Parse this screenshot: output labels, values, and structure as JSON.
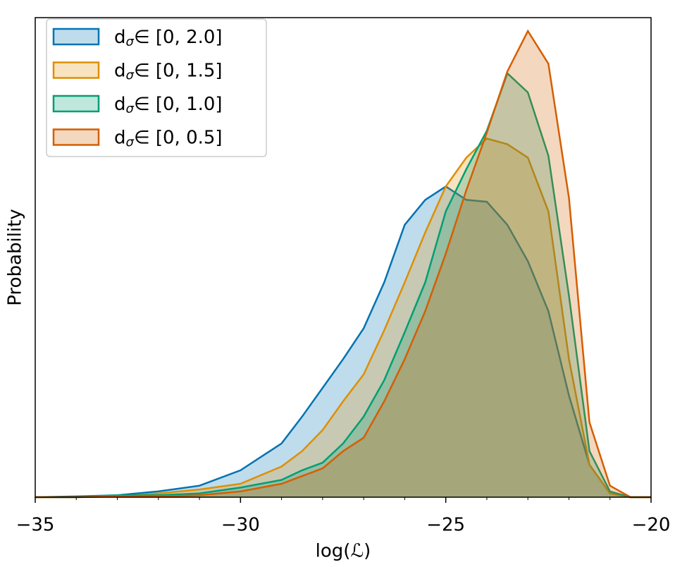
{
  "chart_data": {
    "type": "area",
    "xlabel": "log(ℒ)",
    "ylabel": "Probability",
    "x": [
      -35,
      -34,
      -33,
      -32,
      -31,
      -30,
      -29,
      -28.5,
      -28,
      -27.5,
      -27,
      -26.5,
      -26,
      -25.5,
      -25,
      -24.5,
      -24,
      -23.5,
      -23,
      -22.5,
      -22,
      -21.5,
      -21,
      -20.5,
      -20
    ],
    "series": [
      {
        "name": "dσ∈ [0, 2.0]",
        "color": "#0173b2",
        "values": [
          0,
          0.0004,
          0.001,
          0.003,
          0.006,
          0.014,
          0.028,
          0.042,
          0.057,
          0.072,
          0.088,
          0.112,
          0.142,
          0.155,
          0.162,
          0.155,
          0.154,
          0.142,
          0.123,
          0.097,
          0.053,
          0.017,
          0.002,
          0,
          0
        ]
      },
      {
        "name": "dσ∈ [0, 1.5]",
        "color": "#de8f05",
        "values": [
          0,
          0,
          0.0004,
          0.002,
          0.004,
          0.007,
          0.016,
          0.024,
          0.035,
          0.05,
          0.064,
          0.087,
          0.112,
          0.138,
          0.162,
          0.177,
          0.187,
          0.184,
          0.177,
          0.149,
          0.072,
          0.017,
          0.002,
          0,
          0
        ]
      },
      {
        "name": "dσ∈ [0, 1.0]",
        "color": "#029e73",
        "values": [
          0,
          0,
          0.001,
          0.001,
          0.002,
          0.005,
          0.009,
          0.014,
          0.018,
          0.028,
          0.042,
          0.061,
          0.086,
          0.112,
          0.149,
          0.171,
          0.191,
          0.221,
          0.211,
          0.178,
          0.105,
          0.024,
          0.003,
          0,
          0
        ]
      },
      {
        "name": "dσ∈ [0, 0.5]",
        "color": "#d55e00",
        "values": [
          0,
          0,
          0.0004,
          0.0004,
          0.001,
          0.003,
          0.007,
          0.011,
          0.015,
          0.024,
          0.031,
          0.05,
          0.072,
          0.097,
          0.127,
          0.16,
          0.19,
          0.222,
          0.243,
          0.226,
          0.156,
          0.039,
          0.006,
          0,
          0
        ]
      }
    ],
    "xlim": [
      -35,
      -20
    ],
    "xticks": [
      {
        "value": -35,
        "label": "−35"
      },
      {
        "value": -30,
        "label": "−30"
      },
      {
        "value": -25,
        "label": "−25"
      },
      {
        "value": -20,
        "label": "−20"
      }
    ],
    "xminor_ticks": [
      -34,
      -33,
      -32,
      -31,
      -29,
      -28,
      -27,
      -26,
      -24,
      -23,
      -22,
      -21
    ],
    "ylim": [
      0,
      0.25
    ],
    "legend": "upper left"
  }
}
